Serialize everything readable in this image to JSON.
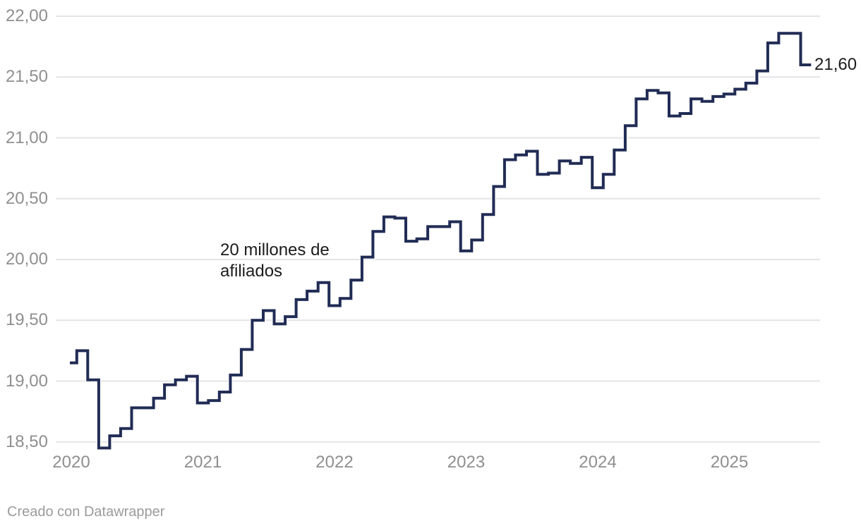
{
  "colors": {
    "line": "#212c55",
    "grid": "#e4e4e7",
    "axis_label": "#8f8f8f",
    "annotation_text": "#1c1c1c",
    "footer_text": "#9b9b9b",
    "background": "#ffffff"
  },
  "chart_data": {
    "type": "line",
    "step": true,
    "frequency": "monthly",
    "x_start": "2020-01",
    "x_end": "2025-08",
    "x_tick_labels": [
      "2020",
      "2021",
      "2022",
      "2023",
      "2024",
      "2025"
    ],
    "y_ticks": [
      22.0,
      21.5,
      21.0,
      20.5,
      20.0,
      19.5,
      19.0,
      18.5
    ],
    "y_tick_labels": [
      "22,00",
      "21,50",
      "21,00",
      "20,50",
      "20,00",
      "19,50",
      "19,00",
      "18,50"
    ],
    "ylim": [
      18.4,
      22.0
    ],
    "grid": "horizontal",
    "legend": "none",
    "values": [
      19.15,
      19.25,
      19.01,
      18.45,
      18.55,
      18.61,
      18.78,
      18.78,
      18.86,
      18.97,
      19.01,
      19.04,
      18.82,
      18.84,
      18.91,
      19.05,
      19.26,
      19.5,
      19.58,
      19.47,
      19.53,
      19.67,
      19.74,
      19.81,
      19.62,
      19.68,
      19.83,
      20.02,
      20.23,
      20.35,
      20.34,
      20.15,
      20.17,
      20.27,
      20.27,
      20.31,
      20.07,
      20.16,
      20.37,
      20.6,
      20.82,
      20.86,
      20.89,
      20.7,
      20.71,
      20.81,
      20.79,
      20.84,
      20.59,
      20.7,
      20.9,
      21.1,
      21.32,
      21.39,
      21.37,
      21.18,
      21.2,
      21.32,
      21.3,
      21.34,
      21.36,
      21.4,
      21.45,
      21.55,
      21.78,
      21.86,
      21.86,
      21.6
    ],
    "end_value": 21.6,
    "end_value_label": "21,60",
    "annotation_text": "20 millones de afiliados"
  },
  "annotation": {
    "line1": "20 millones de",
    "line2": "afiliados"
  },
  "end_label": "21,60",
  "footer": {
    "credit": "Creado con Datawrapper"
  }
}
